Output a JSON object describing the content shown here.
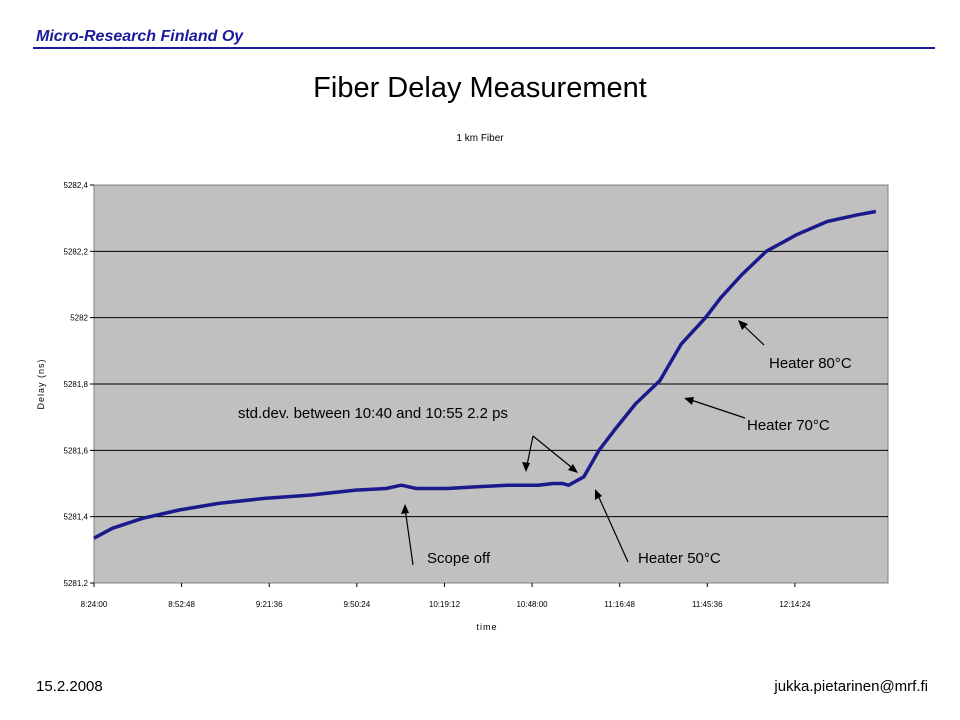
{
  "header": {
    "company": "Micro-Research Finland Oy"
  },
  "slide": {
    "title": "Fiber Delay Measurement"
  },
  "footer": {
    "date": "15.2.2008",
    "email": "jukka.pietarinen@mrf.fi"
  },
  "colors": {
    "plot_bg": "#c0c0c0",
    "line": "#1a1a8c",
    "header_blue": "#1a1a9a"
  },
  "chart_data": {
    "type": "line",
    "title": "1 km Fiber",
    "xlabel": "time",
    "ylabel": "Delay (ns)",
    "ylim": [
      5281.2,
      5282.4
    ],
    "yticks": [
      "5281,2",
      "5281,4",
      "5281,6",
      "5281,8",
      "5282",
      "5282,2",
      "5282,4"
    ],
    "xlim": [
      "8:24:00",
      "12:45:00"
    ],
    "xticks": [
      "8:24:00",
      "8:52:48",
      "9:21:36",
      "9:50:24",
      "10:19:12",
      "10:48:00",
      "11:16:48",
      "11:45:36",
      "12:14:24"
    ],
    "grid": true,
    "legend": "none",
    "series": [
      {
        "x": [
          "8:24:00",
          "8:30:00",
          "8:40:00",
          "8:52:00",
          "9:05:00",
          "9:20:00",
          "9:35:00",
          "9:50:00",
          "10:00:00",
          "10:05:00",
          "10:10:00",
          "10:20:00",
          "10:30:00",
          "10:40:00",
          "10:50:00",
          "10:55:00",
          "10:58:00",
          "11:00:00",
          "11:05:00",
          "11:10:00",
          "11:15:00",
          "11:22:00",
          "11:30:00",
          "11:37:00",
          "11:45:00",
          "11:50:00",
          "11:57:00",
          "12:05:00",
          "12:15:00",
          "12:25:00",
          "12:35:00",
          "12:41:00"
        ],
        "values": [
          5281.335,
          5281.365,
          5281.395,
          5281.42,
          5281.44,
          5281.455,
          5281.465,
          5281.48,
          5281.485,
          5281.495,
          5281.485,
          5281.485,
          5281.49,
          5281.495,
          5281.495,
          5281.5,
          5281.5,
          5281.495,
          5281.52,
          5281.6,
          5281.66,
          5281.74,
          5281.81,
          5281.92,
          5282.0,
          5282.06,
          5282.13,
          5282.2,
          5282.25,
          5282.29,
          5282.31,
          5282.32
        ]
      }
    ],
    "annotations": [
      {
        "text": "std.dev. between 10:40 and 10:55 2.2 ps"
      },
      {
        "text": "Scope off"
      },
      {
        "text": "Heater 50°C"
      },
      {
        "text": "Heater 70°C"
      },
      {
        "text": "Heater 80°C"
      }
    ]
  }
}
